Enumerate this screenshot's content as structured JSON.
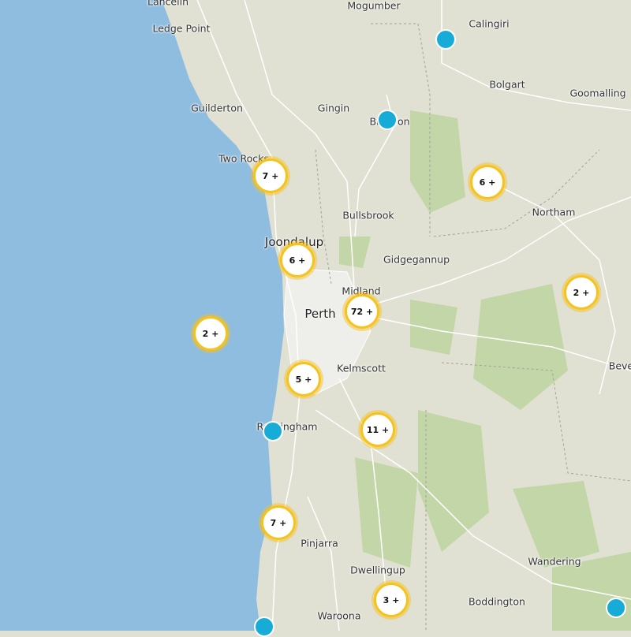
{
  "colors": {
    "ocean": "#8fbde0",
    "land": "#e0e1d2",
    "forest": "#c3d6a8",
    "cluster_ring": "#f7c21b",
    "pin": "#17acd8"
  },
  "places": [
    {
      "name": "Lancelin"
    },
    {
      "name": "Mogumber"
    },
    {
      "name": "Calingiri"
    },
    {
      "name": "Ledge Point"
    },
    {
      "name": "Bolgart"
    },
    {
      "name": "Goomalling"
    },
    {
      "name": "Guilderton"
    },
    {
      "name": "Gingin"
    },
    {
      "name": "Bindoon"
    },
    {
      "name": "Two Rocks"
    },
    {
      "name": "Northam"
    },
    {
      "name": "Bullsbrook"
    },
    {
      "name": "Joondalup"
    },
    {
      "name": "Gidgegannup"
    },
    {
      "name": "Midland"
    },
    {
      "name": "Perth"
    },
    {
      "name": "Kelmscott"
    },
    {
      "name": "Rockingham"
    },
    {
      "name": "Pinjarra"
    },
    {
      "name": "Dwellingup"
    },
    {
      "name": "Wandering"
    },
    {
      "name": "Boddington"
    },
    {
      "name": "Waroona"
    },
    {
      "name": "Bever"
    }
  ],
  "clusters": [
    {
      "label": "7 +"
    },
    {
      "label": "6 +"
    },
    {
      "label": "6 +"
    },
    {
      "label": "72 +"
    },
    {
      "label": "2 +"
    },
    {
      "label": "2 +"
    },
    {
      "label": "5 +"
    },
    {
      "label": "11 +"
    },
    {
      "label": "7 +"
    },
    {
      "label": "3 +"
    }
  ]
}
